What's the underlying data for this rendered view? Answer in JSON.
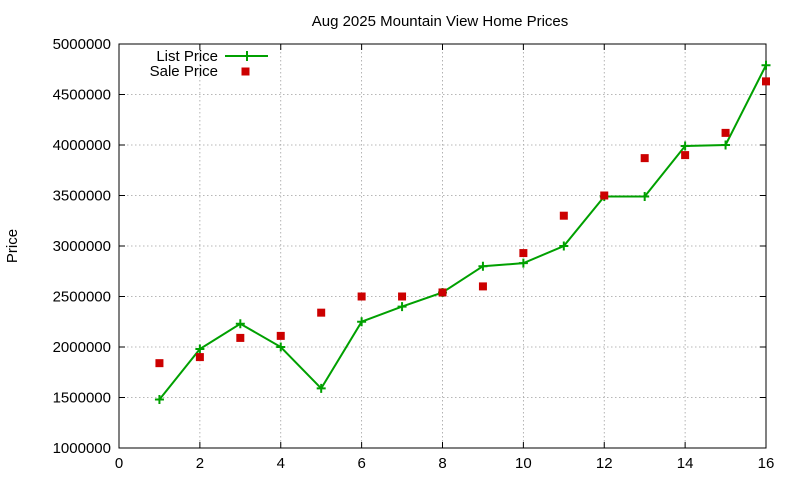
{
  "chart_data": {
    "type": "line",
    "title": "Aug 2025 Mountain View Home Prices",
    "xlabel": "",
    "ylabel": "Price",
    "xlim": [
      0,
      16
    ],
    "ylim": [
      1000000,
      5000000
    ],
    "xticks": [
      0,
      2,
      4,
      6,
      8,
      10,
      12,
      14,
      16
    ],
    "xtick_labels": [
      "0",
      "2",
      "4",
      "6",
      "8",
      "10",
      "12",
      "14",
      "16"
    ],
    "yticks": [
      1000000,
      1500000,
      2000000,
      2500000,
      3000000,
      3500000,
      4000000,
      4500000,
      5000000
    ],
    "ytick_labels": [
      "1000000",
      "1500000",
      "2000000",
      "2500000",
      "3000000",
      "3500000",
      "4000000",
      "4500000",
      "5000000"
    ],
    "grid": true,
    "legend_position": "top-left",
    "series": [
      {
        "name": "List Price",
        "style": "linespoints",
        "marker": "plus",
        "color": "#00a000",
        "x": [
          1,
          2,
          3,
          4,
          5,
          6,
          7,
          8,
          9,
          10,
          11,
          12,
          13,
          14,
          15,
          16
        ],
        "values": [
          1480000,
          1980000,
          2230000,
          2000000,
          1590000,
          2250000,
          2400000,
          2540000,
          2800000,
          2830000,
          3000000,
          3490000,
          3490000,
          3990000,
          4000000,
          4790000
        ]
      },
      {
        "name": "Sale Price",
        "style": "points",
        "marker": "square",
        "color": "#cc0000",
        "x": [
          1,
          2,
          3,
          4,
          5,
          6,
          7,
          8,
          9,
          10,
          11,
          12,
          13,
          14,
          15,
          16
        ],
        "values": [
          1840000,
          1900000,
          2090000,
          2110000,
          2340000,
          2500000,
          2500000,
          2540000,
          2600000,
          2930000,
          3300000,
          3500000,
          3870000,
          3900000,
          4120000,
          4630000
        ]
      }
    ]
  }
}
